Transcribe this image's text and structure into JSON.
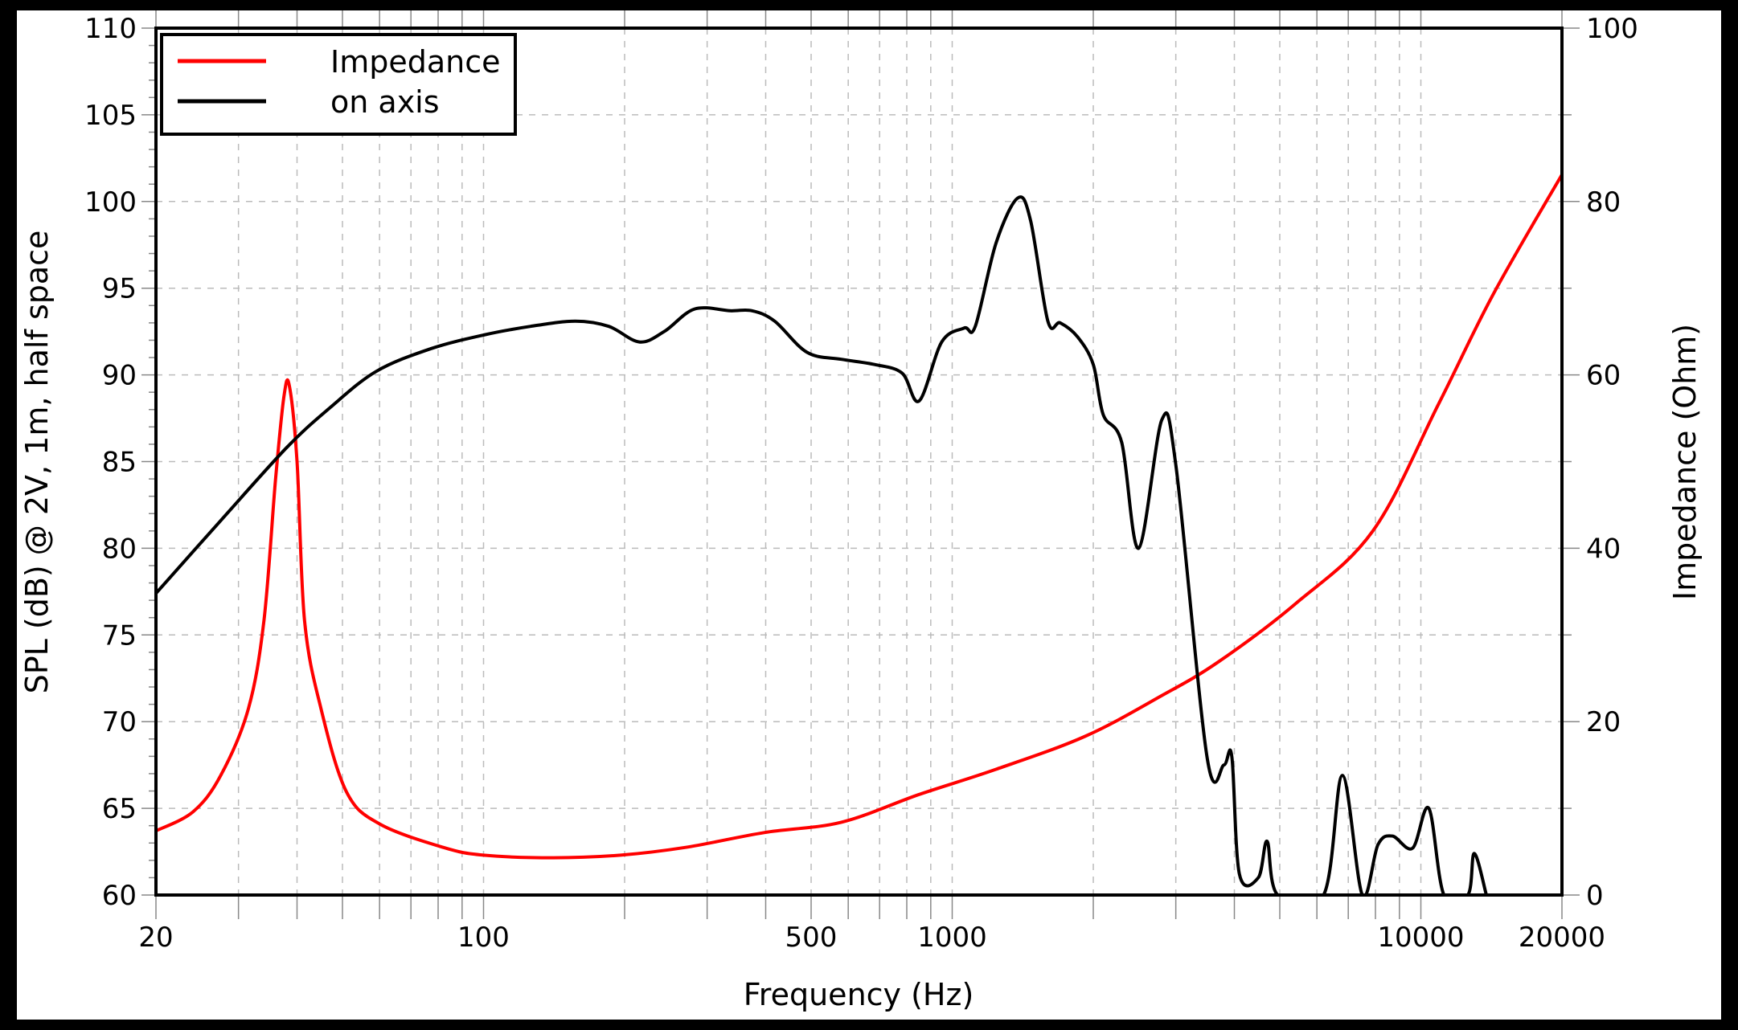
{
  "chart_data": {
    "type": "line",
    "title": "",
    "xlabel": "Frequency (Hz)",
    "ylabel": "SPL (dB) @ 2V, 1m, half space",
    "y2label": "Impedance (Ohm)",
    "xscale": "log",
    "xlim": [
      20,
      20000
    ],
    "ylim": [
      60,
      110
    ],
    "y2lim": [
      0,
      100
    ],
    "grid": true,
    "legend_position": "upper left",
    "x_ticks": [
      20,
      100,
      500,
      1000,
      10000,
      20000
    ],
    "x_tick_labels": [
      "20",
      "100",
      "500",
      "1000",
      "10000",
      "20000"
    ],
    "y_ticks": [
      60,
      65,
      70,
      75,
      80,
      85,
      90,
      95,
      100,
      105,
      110
    ],
    "y2_ticks": [
      0,
      20,
      40,
      60,
      80,
      100
    ],
    "series": [
      {
        "name": "Impedance",
        "axis": "right",
        "color": "#ff0000",
        "x": [
          20,
          24,
          27.5,
          31.5,
          34,
          36,
          37.5,
          38.5,
          40,
          41.5,
          45,
          51,
          60,
          82,
          100,
          141,
          196,
          270,
          397,
          580,
          850,
          1240,
          1920,
          2800,
          3700,
          5400,
          7900,
          10900,
          14300,
          20000
        ],
        "y": [
          7.4,
          9.6,
          13.8,
          21.5,
          31.7,
          48,
          57.5,
          58.8,
          50,
          31.7,
          21.5,
          11.9,
          8.2,
          5.5,
          4.6,
          4.3,
          4.6,
          5.5,
          7.2,
          8.4,
          11.6,
          14.5,
          18.3,
          23.0,
          26.9,
          33.6,
          42.0,
          56.6,
          69.4,
          83.1
        ]
      },
      {
        "name": "on axis",
        "axis": "left",
        "color": "#000000",
        "x": [
          20,
          27.5,
          38,
          47,
          59,
          77,
          100,
          126,
          157,
          185,
          215,
          243,
          282,
          336,
          374,
          418,
          490,
          580,
          683,
          782,
          850,
          950,
          1060,
          1120,
          1240,
          1380,
          1470,
          1600,
          1700,
          1850,
          2000,
          2100,
          2300,
          2500,
          2800,
          3000,
          3500,
          3800,
          3950,
          4100,
          4500,
          4700,
          4950,
          6200,
          6800,
          7500,
          8100,
          8700,
          9600,
          10400,
          11200,
          12600,
          13000,
          13800
        ],
        "y": [
          77.4,
          81.6,
          85.8,
          88.1,
          90.2,
          91.5,
          92.3,
          92.8,
          93.1,
          92.8,
          91.9,
          92.5,
          93.8,
          93.7,
          93.7,
          93.1,
          91.3,
          90.9,
          90.6,
          90.1,
          88.5,
          91.9,
          92.7,
          92.8,
          97.6,
          100.2,
          98.9,
          93.1,
          93.0,
          92.2,
          90.6,
          87.7,
          86.1,
          80.0,
          87.4,
          84.8,
          67.9,
          67.5,
          68.0,
          61.2,
          61.0,
          63.1,
          60,
          60,
          66.9,
          60,
          62.9,
          63.4,
          62.7,
          65.0,
          60,
          60,
          62.4,
          60
        ]
      }
    ]
  },
  "legend": {
    "items": [
      {
        "label": "Impedance",
        "color": "#ff0000"
      },
      {
        "label": "on axis",
        "color": "#000000"
      }
    ]
  },
  "axes": {
    "xlabel": "Frequency (Hz)",
    "ylabel": "SPL (dB) @ 2V, 1m, half space",
    "y2label": "Impedance (Ohm)"
  }
}
